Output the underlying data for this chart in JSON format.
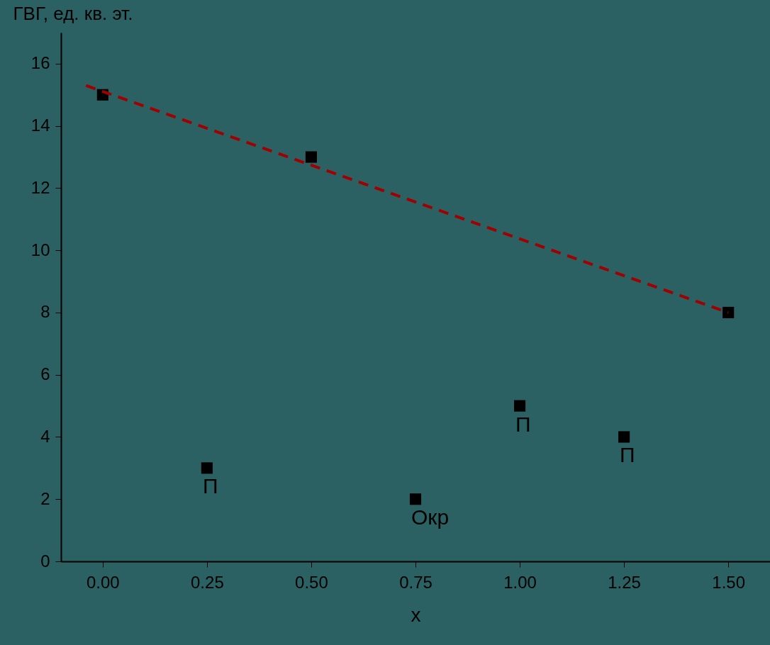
{
  "chart_data": {
    "type": "scatter",
    "xlabel": "x",
    "ylabel": "ГВГ, ед. кв. эт.",
    "xlim": [
      -0.1,
      1.6
    ],
    "xticks": [
      {
        "value": 0,
        "label": "0.00"
      },
      {
        "value": 0.25,
        "label": "0.25"
      },
      {
        "value": 0.5,
        "label": "0.50"
      },
      {
        "value": 0.75,
        "label": "0.75"
      },
      {
        "value": 1,
        "label": "1.00"
      },
      {
        "value": 1.25,
        "label": "1.25"
      },
      {
        "value": 1.5,
        "label": "1.50"
      }
    ],
    "ylim": [
      0,
      17
    ],
    "yticks": [
      0,
      2,
      4,
      6,
      8,
      10,
      12,
      14,
      16
    ],
    "grid": false,
    "marker": "square",
    "series": [
      {
        "color": "#000000",
        "x": [
          0,
          0.25,
          0.5,
          0.75,
          1,
          1.25,
          1.5
        ],
        "values": [
          15,
          3,
          13,
          2,
          5,
          4,
          8
        ]
      },
      {
        "type": "line",
        "color": "#a00000",
        "line_style": "dashed",
        "marker": "none",
        "x": [
          -0.04,
          1.5
        ],
        "values": [
          15.3,
          8.0
        ]
      }
    ],
    "annotations": [
      {
        "text": "П",
        "x": 0.25,
        "y": 3
      },
      {
        "text": "Окр",
        "x": 0.75,
        "y": 2
      },
      {
        "text": "П",
        "x": 1,
        "y": 5
      },
      {
        "text": "П",
        "x": 1.25,
        "y": 4
      }
    ]
  }
}
